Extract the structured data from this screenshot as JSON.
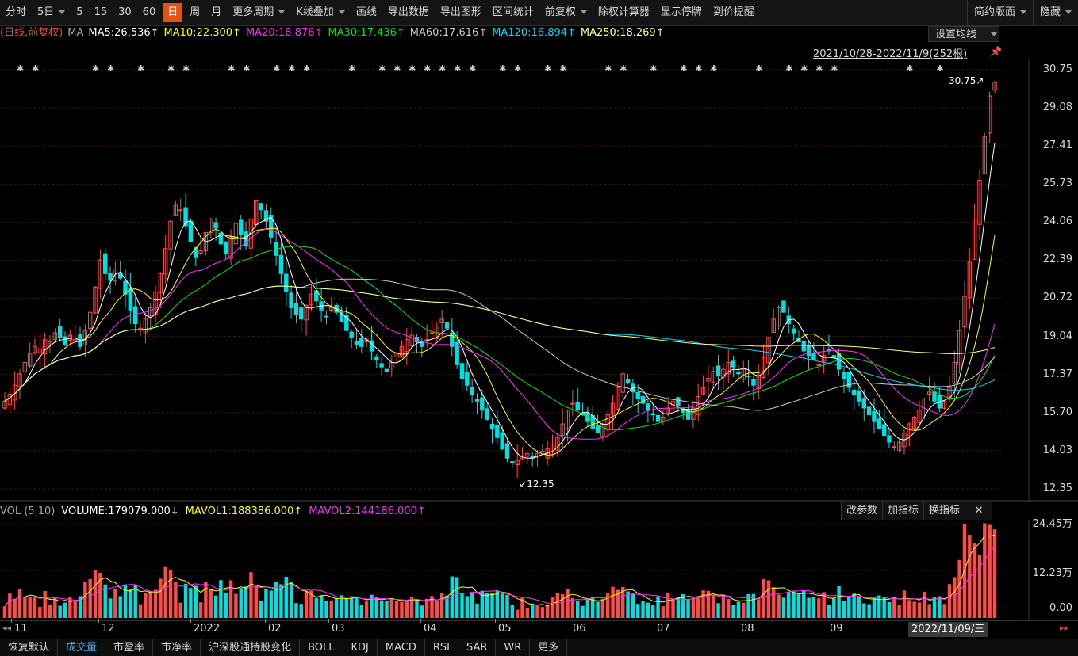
{
  "toolbar": {
    "items": [
      "分时",
      "5日",
      "5",
      "15",
      "30",
      "60",
      "日",
      "周",
      "月",
      "更多周期",
      "K线叠加",
      "画线",
      "导出数据",
      "导出图形",
      "区间统计",
      "前复权",
      "除权计算器",
      "显示停牌",
      "到价提醒"
    ],
    "active_index": 6,
    "dropdown_indices": [
      1,
      9,
      10,
      15
    ],
    "right": [
      "简约版面",
      "隐藏"
    ]
  },
  "ma_line": {
    "prefix": "(日线,前复权)",
    "ma": "MA",
    "items": [
      {
        "text": "MA5:26.536↑",
        "color": "#ffffff"
      },
      {
        "text": "MA10:22.300↑",
        "color": "#ffff00"
      },
      {
        "text": "MA20:18.876↑",
        "color": "#ff2cff"
      },
      {
        "text": "MA30:17.436↑",
        "color": "#00e600"
      },
      {
        "text": "MA60:17.616↑",
        "color": "#c8c8c8"
      },
      {
        "text": "MA120:16.894↑",
        "color": "#00d8ff"
      },
      {
        "text": "MA250:18.269↑",
        "color": "#ffff80"
      }
    ]
  },
  "settings_button": "设置均线",
  "range_label": "2021/10/28-2022/11/9(252根)",
  "price_axis": [
    "30.75",
    "29.08",
    "27.41",
    "25.73",
    "24.06",
    "22.39",
    "20.72",
    "19.04",
    "17.37",
    "15.70",
    "14.03",
    "12.35"
  ],
  "annotations": {
    "high": "30.75↗",
    "low": "↙12.35"
  },
  "volume": {
    "prefix": "VOL (5,10)",
    "volume": "VOLUME:179079.000↓",
    "mavol1": "MAVOL1:188386.000↑",
    "mavol2": "MAVOL2:144186.000↑",
    "axis": [
      "24.45万",
      "12.23万",
      "0.00"
    ],
    "buttons": [
      "改参数",
      "加指标",
      "换指标"
    ]
  },
  "x_axis": [
    "11",
    "12",
    "2022",
    "02",
    "03",
    "04",
    "05",
    "06",
    "07",
    "08",
    "09"
  ],
  "current_date": "2022/11/09/三",
  "bottom_tabs": [
    "恢复默认",
    "成交量",
    "市盈率",
    "市净率",
    "沪深股通持股变化",
    "BOLL",
    "KDJ",
    "MACD",
    "RSI",
    "SAR",
    "WR",
    "更多"
  ],
  "bottom_tab_active": 1,
  "colors": {
    "up": "#ff4a4a",
    "down": "#00e0e0",
    "bg": "#000000",
    "grid": "#3a1a1a"
  },
  "chart_data": {
    "type": "candlestick",
    "period": "daily",
    "ylim": [
      12.35,
      30.75
    ],
    "months": [
      "11",
      "12",
      "2022",
      "02",
      "03",
      "04",
      "05",
      "06",
      "07",
      "08",
      "09"
    ],
    "closes": [
      16.2,
      16.5,
      16.9,
      17.4,
      17.9,
      18.3,
      18.6,
      18.5,
      18.9,
      18.8,
      19.2,
      19.0,
      18.7,
      19.1,
      18.9,
      18.6,
      19.3,
      20.1,
      21.2,
      22.4,
      21.8,
      21.5,
      22.0,
      21.6,
      20.9,
      20.2,
      19.6,
      19.4,
      19.8,
      20.3,
      21.0,
      21.8,
      22.9,
      24.1,
      24.8,
      24.6,
      23.9,
      23.2,
      22.5,
      22.8,
      23.6,
      24.2,
      23.8,
      23.1,
      22.7,
      23.4,
      24.0,
      23.5,
      23.0,
      24.2,
      25.0,
      24.6,
      24.1,
      23.4,
      22.6,
      21.8,
      21.0,
      20.3,
      20.0,
      19.8,
      20.4,
      20.9,
      20.6,
      20.2,
      19.9,
      20.3,
      20.1,
      19.7,
      19.3,
      19.0,
      18.7,
      18.6,
      18.9,
      18.4,
      18.0,
      17.7,
      17.5,
      17.9,
      18.3,
      18.6,
      18.9,
      19.1,
      18.8,
      18.6,
      18.9,
      19.2,
      19.5,
      19.8,
      19.4,
      18.6,
      17.8,
      17.2,
      16.9,
      16.5,
      16.2,
      15.8,
      15.4,
      15.0,
      14.6,
      14.1,
      13.7,
      13.5,
      13.6,
      13.8,
      13.9,
      13.7,
      13.9,
      14.0,
      14.1,
      14.3,
      14.6,
      15.2,
      15.8,
      16.1,
      15.8,
      15.6,
      15.3,
      15.0,
      14.8,
      15.2,
      15.6,
      16.1,
      16.8,
      17.4,
      17.0,
      16.6,
      16.3,
      16.1,
      15.8,
      15.6,
      15.3,
      15.5,
      15.9,
      16.2,
      16.0,
      15.7,
      15.4,
      15.9,
      16.4,
      16.8,
      17.2,
      17.5,
      17.3,
      17.6,
      17.9,
      17.7,
      17.4,
      17.6,
      17.3,
      16.9,
      17.3,
      18.1,
      19.0,
      19.8,
      20.3,
      20.1,
      19.6,
      19.2,
      18.8,
      18.4,
      18.2,
      18.0,
      17.8,
      18.2,
      18.4,
      18.1,
      17.6,
      17.2,
      16.8,
      16.5,
      16.2,
      15.9,
      15.6,
      15.3,
      15.0,
      14.7,
      14.4,
      14.2,
      14.4,
      14.8,
      15.2,
      15.5,
      15.8,
      16.3,
      16.6,
      16.2,
      15.9,
      16.2,
      16.8,
      17.9,
      19.3,
      20.8,
      22.3,
      24.2,
      25.9,
      27.8,
      29.6,
      30.2
    ],
    "notes": "approximate daily closes read from chart; candles rendered with synthetic open/high/low"
  }
}
